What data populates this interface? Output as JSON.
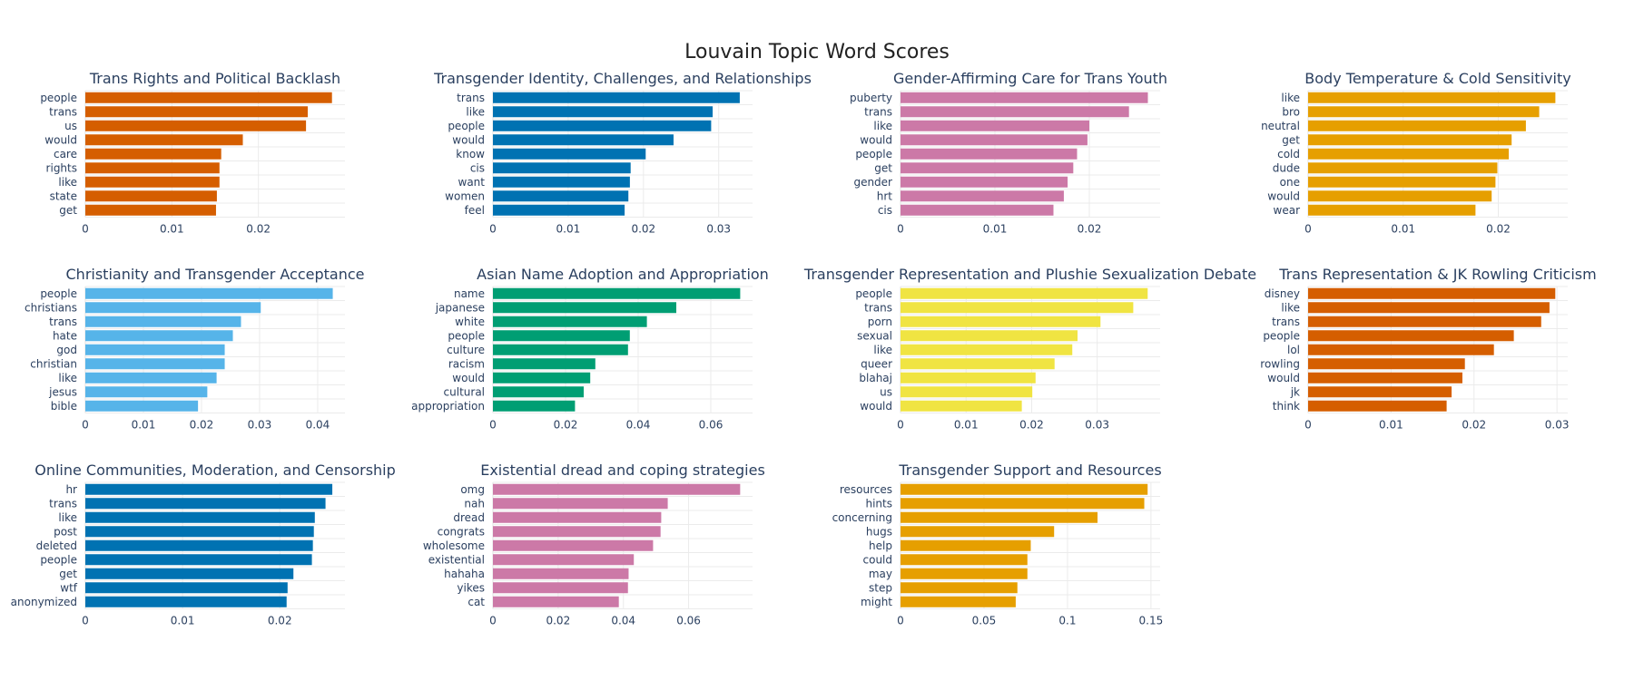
{
  "title": "Louvain Topic Word Scores",
  "chart_data": [
    {
      "type": "bar",
      "orientation": "horizontal",
      "title": "Trans Rights and Political Backlash",
      "color": "#d55e00",
      "categories": [
        "people",
        "trans",
        "us",
        "would",
        "care",
        "rights",
        "like",
        "state",
        "get"
      ],
      "values": [
        0.0285,
        0.0257,
        0.0255,
        0.0182,
        0.0157,
        0.0155,
        0.0155,
        0.0152,
        0.0151
      ],
      "xlim": [
        0,
        0.03
      ],
      "xticks": [
        0,
        0.01,
        0.02
      ],
      "xtick_labels": [
        "0",
        "0.01",
        "0.02"
      ]
    },
    {
      "type": "bar",
      "orientation": "horizontal",
      "title": "Transgender Identity, Challenges, and Relationships",
      "color": "#0072b2",
      "categories": [
        "trans",
        "like",
        "people",
        "would",
        "know",
        "cis",
        "want",
        "women",
        "feel"
      ],
      "values": [
        0.0328,
        0.0292,
        0.029,
        0.024,
        0.0203,
        0.0183,
        0.0182,
        0.018,
        0.0175
      ],
      "xlim": [
        0,
        0.0345
      ],
      "xticks": [
        0,
        0.01,
        0.02,
        0.03
      ],
      "xtick_labels": [
        "0",
        "0.01",
        "0.02",
        "0.03"
      ]
    },
    {
      "type": "bar",
      "orientation": "horizontal",
      "title": "Gender-Affirming Care for Trans Youth",
      "color": "#cc79a7",
      "categories": [
        "puberty",
        "trans",
        "like",
        "would",
        "people",
        "get",
        "gender",
        "hrt",
        "cis"
      ],
      "values": [
        0.0262,
        0.0242,
        0.02,
        0.0198,
        0.0187,
        0.0183,
        0.0177,
        0.0173,
        0.0162
      ],
      "xlim": [
        0,
        0.0275
      ],
      "xticks": [
        0,
        0.01,
        0.02
      ],
      "xtick_labels": [
        "0",
        "0.01",
        "0.02"
      ]
    },
    {
      "type": "bar",
      "orientation": "horizontal",
      "title": "Body Temperature & Cold Sensitivity",
      "color": "#e69f00",
      "categories": [
        "like",
        "bro",
        "neutral",
        "get",
        "cold",
        "dude",
        "one",
        "would",
        "wear"
      ],
      "values": [
        0.026,
        0.0243,
        0.0229,
        0.0214,
        0.0211,
        0.0199,
        0.0197,
        0.0193,
        0.0176
      ],
      "xlim": [
        0,
        0.0273
      ],
      "xticks": [
        0,
        0.01,
        0.02
      ],
      "xtick_labels": [
        "0",
        "0.01",
        "0.02"
      ]
    },
    {
      "type": "bar",
      "orientation": "horizontal",
      "title": "Christianity and Transgender Acceptance",
      "color": "#56b4e9",
      "categories": [
        "people",
        "christians",
        "trans",
        "hate",
        "god",
        "christian",
        "like",
        "jesus",
        "bible"
      ],
      "values": [
        0.0426,
        0.0302,
        0.0268,
        0.0254,
        0.024,
        0.024,
        0.0226,
        0.021,
        0.0194
      ],
      "xlim": [
        0,
        0.0447
      ],
      "xticks": [
        0,
        0.01,
        0.02,
        0.03,
        0.04
      ],
      "xtick_labels": [
        "0",
        "0.01",
        "0.02",
        "0.03",
        "0.04"
      ]
    },
    {
      "type": "bar",
      "orientation": "horizontal",
      "title": "Asian Name Adoption and Appropriation",
      "color": "#009e73",
      "categories": [
        "name",
        "japanese",
        "white",
        "people",
        "culture",
        "racism",
        "would",
        "cultural",
        "appropriation"
      ],
      "values": [
        0.0681,
        0.0505,
        0.0424,
        0.0377,
        0.0372,
        0.0282,
        0.0268,
        0.025,
        0.0226
      ],
      "xlim": [
        0,
        0.0715
      ],
      "xticks": [
        0,
        0.02,
        0.04,
        0.06
      ],
      "xtick_labels": [
        "0",
        "0.02",
        "0.04",
        "0.06"
      ]
    },
    {
      "type": "bar",
      "orientation": "horizontal",
      "title": "Transgender Representation and Plushie Sexualization Debate",
      "color": "#f0e442",
      "categories": [
        "people",
        "trans",
        "porn",
        "sexual",
        "like",
        "queer",
        "blahaj",
        "us",
        "would"
      ],
      "values": [
        0.0377,
        0.0355,
        0.0305,
        0.027,
        0.0262,
        0.0235,
        0.0206,
        0.0201,
        0.0185
      ],
      "xlim": [
        0,
        0.0396
      ],
      "xticks": [
        0,
        0.01,
        0.02,
        0.03
      ],
      "xtick_labels": [
        "0",
        "0.01",
        "0.02",
        "0.03"
      ]
    },
    {
      "type": "bar",
      "orientation": "horizontal",
      "title": "Trans Representation & JK Rowling Criticism",
      "color": "#d55e00",
      "categories": [
        "disney",
        "like",
        "trans",
        "people",
        "lol",
        "rowling",
        "would",
        "jk",
        "think"
      ],
      "values": [
        0.0298,
        0.0291,
        0.0281,
        0.0248,
        0.0224,
        0.0189,
        0.0186,
        0.0173,
        0.0167
      ],
      "xlim": [
        0,
        0.0313
      ],
      "xticks": [
        0,
        0.01,
        0.02,
        0.03
      ],
      "xtick_labels": [
        "0",
        "0.01",
        "0.02",
        "0.03"
      ]
    },
    {
      "type": "bar",
      "orientation": "horizontal",
      "title": "Online Communities, Moderation, and Censorship",
      "color": "#0072b2",
      "categories": [
        "hr",
        "trans",
        "like",
        "post",
        "deleted",
        "people",
        "get",
        "wtf",
        "anonymized"
      ],
      "values": [
        0.0254,
        0.0247,
        0.0236,
        0.0235,
        0.0234,
        0.0233,
        0.0214,
        0.0208,
        0.0207
      ],
      "xlim": [
        0,
        0.0267
      ],
      "xticks": [
        0,
        0.01,
        0.02
      ],
      "xtick_labels": [
        "0",
        "0.01",
        "0.02"
      ]
    },
    {
      "type": "bar",
      "orientation": "horizontal",
      "title": "Existential dread and coping strategies",
      "color": "#cc79a7",
      "categories": [
        "omg",
        "nah",
        "dread",
        "congrats",
        "wholesome",
        "existential",
        "hahaha",
        "yikes",
        "cat"
      ],
      "values": [
        0.0758,
        0.0536,
        0.0516,
        0.0514,
        0.0491,
        0.0432,
        0.0416,
        0.0414,
        0.0386
      ],
      "xlim": [
        0,
        0.0796
      ],
      "xticks": [
        0,
        0.02,
        0.04,
        0.06
      ],
      "xtick_labels": [
        "0",
        "0.02",
        "0.04",
        "0.06"
      ]
    },
    {
      "type": "bar",
      "orientation": "horizontal",
      "title": "Transgender Support and Resources",
      "color": "#e69f00",
      "categories": [
        "resources",
        "hints",
        "concerning",
        "hugs",
        "help",
        "could",
        "may",
        "step",
        "might"
      ],
      "values": [
        0.148,
        0.146,
        0.118,
        0.092,
        0.078,
        0.076,
        0.076,
        0.07,
        0.069
      ],
      "xlim": [
        0,
        0.1555
      ],
      "xticks": [
        0,
        0.05,
        0.1,
        0.15
      ],
      "xtick_labels": [
        "0",
        "0.05",
        "0.1",
        "0.15"
      ]
    }
  ]
}
